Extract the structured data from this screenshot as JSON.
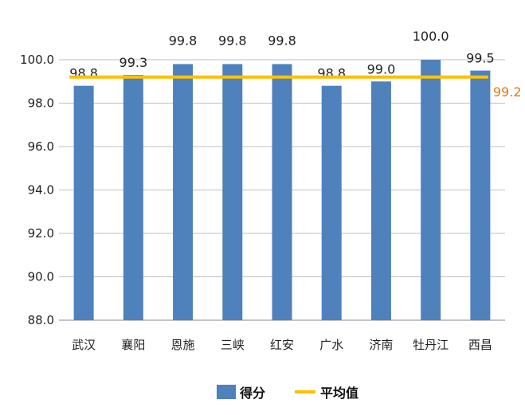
{
  "chart_data": {
    "type": "bar",
    "categories": [
      "武汉",
      "襄阳",
      "恩施",
      "三峡",
      "红安",
      "广水",
      "济南",
      "牡丹江",
      "西昌"
    ],
    "series": [
      {
        "name": "得分",
        "values": [
          98.8,
          99.3,
          99.8,
          99.8,
          99.8,
          98.8,
          99.0,
          100.0,
          99.5
        ],
        "value_labels": [
          "98.8",
          "99.3",
          "99.8",
          "99.8",
          "99.8",
          "98.8",
          "99.0",
          "100.0",
          "99.5"
        ],
        "color": "#4F81BD"
      },
      {
        "name": "平均值",
        "type": "line",
        "value": 99.2,
        "value_label": "99.2",
        "color": "#FFC000",
        "label_color": "#E07A10"
      }
    ],
    "ylim": [
      88.0,
      100.0
    ],
    "yticks": [
      "88.0",
      "90.0",
      "92.0",
      "94.0",
      "96.0",
      "98.0",
      "100.0"
    ],
    "ytick_values": [
      88,
      90,
      92,
      94,
      96,
      98,
      100
    ],
    "grid": true,
    "legend_position": "bottom"
  }
}
